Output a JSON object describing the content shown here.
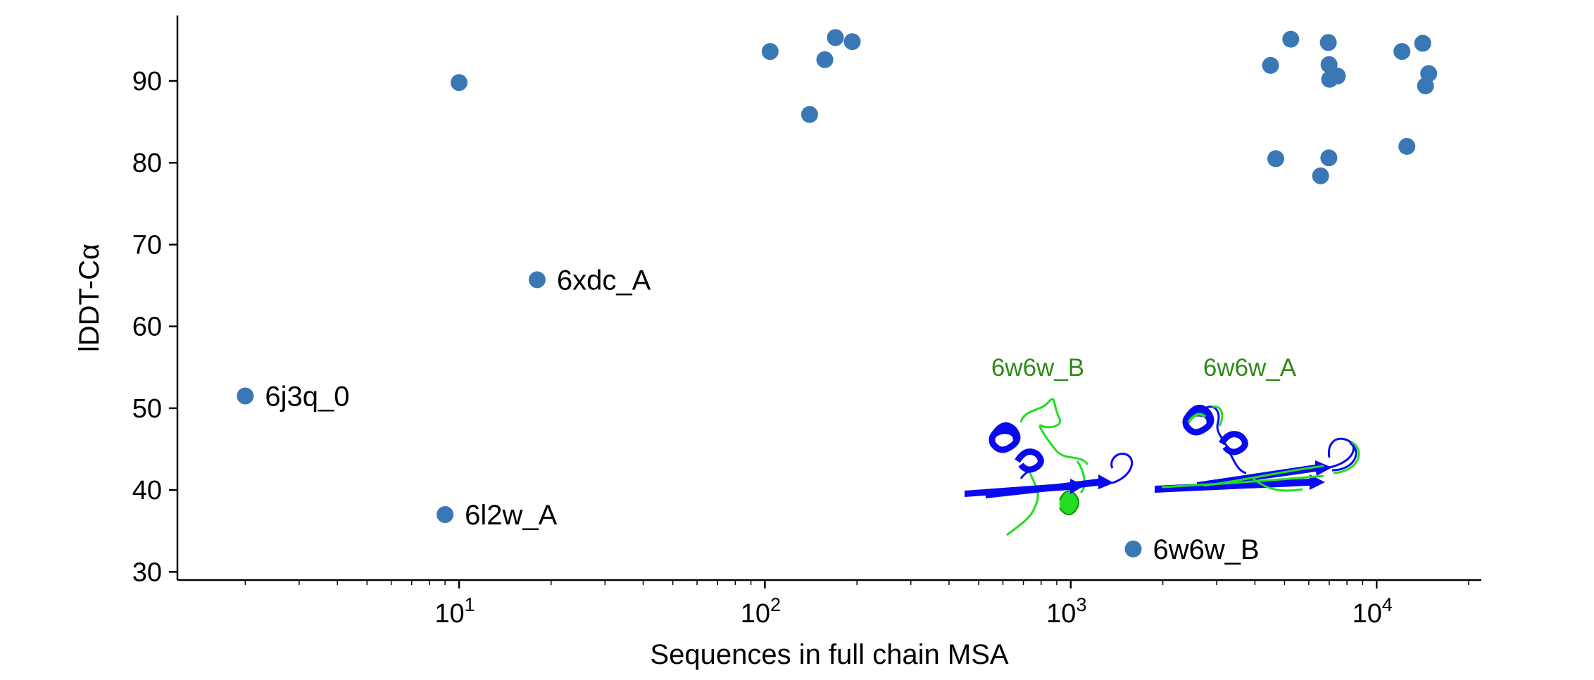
{
  "chart_data": {
    "type": "scatter",
    "title": "",
    "xlabel": "Sequences in full chain MSA",
    "ylabel": "lDDT-Cα",
    "xscale": "log",
    "xlim": [
      1.2,
      22000
    ],
    "ylim": [
      29,
      98
    ],
    "yticks": [
      30,
      40,
      50,
      60,
      70,
      80,
      90
    ],
    "xticks": [
      {
        "value": 10,
        "base": "10",
        "exp": "1"
      },
      {
        "value": 100,
        "base": "10",
        "exp": "2"
      },
      {
        "value": 1000,
        "base": "10",
        "exp": "3"
      },
      {
        "value": 10000,
        "base": "10",
        "exp": "4"
      }
    ],
    "color": "#3a78b5",
    "points": [
      {
        "x": 2,
        "y": 51.5,
        "label": "6j3q_0"
      },
      {
        "x": 9,
        "y": 37,
        "label": "6l2w_A"
      },
      {
        "x": 18,
        "y": 65.7,
        "label": "6xdc_A"
      },
      {
        "x": 1600,
        "y": 32.8,
        "label": "6w6w_B"
      },
      {
        "x": 10,
        "y": 89.8
      },
      {
        "x": 104,
        "y": 93.6
      },
      {
        "x": 140,
        "y": 85.9
      },
      {
        "x": 157,
        "y": 92.6
      },
      {
        "x": 170,
        "y": 95.3
      },
      {
        "x": 193,
        "y": 94.8
      },
      {
        "x": 4500,
        "y": 91.9
      },
      {
        "x": 4680,
        "y": 80.5
      },
      {
        "x": 5240,
        "y": 95.1
      },
      {
        "x": 6560,
        "y": 78.4
      },
      {
        "x": 6950,
        "y": 94.7
      },
      {
        "x": 6980,
        "y": 80.6
      },
      {
        "x": 6990,
        "y": 92
      },
      {
        "x": 7020,
        "y": 90.2
      },
      {
        "x": 7440,
        "y": 90.6
      },
      {
        "x": 12100,
        "y": 93.6
      },
      {
        "x": 12560,
        "y": 82
      },
      {
        "x": 14150,
        "y": 94.6
      },
      {
        "x": 14450,
        "y": 89.4
      },
      {
        "x": 14800,
        "y": 90.9
      }
    ],
    "insets": [
      {
        "label": "6w6w_B",
        "label_color": "#2f8a16"
      },
      {
        "label": "6w6w_A",
        "label_color": "#2f8a16"
      }
    ],
    "inset_colors": {
      "predicted": "#0a0af0",
      "experimental": "#22dd22"
    }
  }
}
